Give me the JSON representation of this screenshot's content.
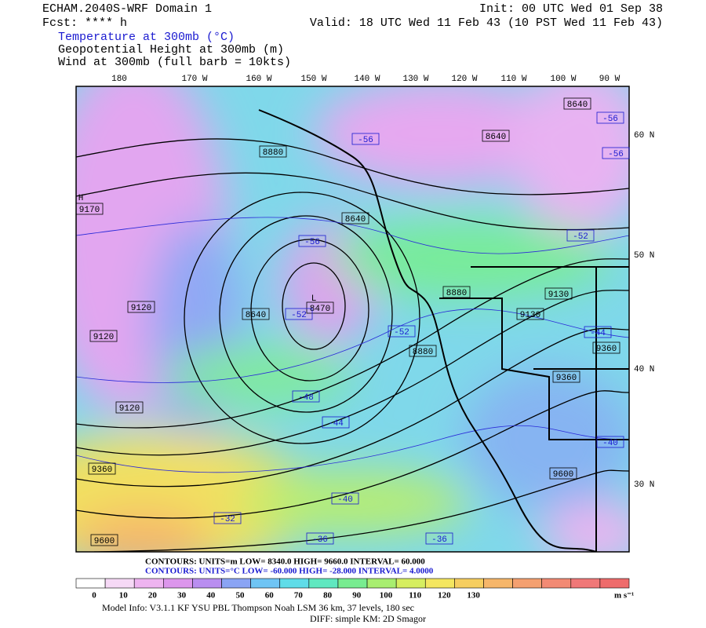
{
  "header": {
    "title": "ECHAM.2040S-WRF Domain 1",
    "fcst": "Fcst: **** h",
    "init": "Init: 00 UTC Wed 01 Sep 38",
    "valid": "Valid: 18 UTC Wed 11 Feb 43 (10 PST Wed 11 Feb 43)",
    "fields": [
      "Temperature at 300mb (°C)",
      "Geopotential Height at 300mb (m)",
      "Wind at 300mb (full barb = 10kts)"
    ]
  },
  "map": {
    "lon_labels": [
      "180",
      "170 W",
      "160 W",
      "150 W",
      "140 W",
      "130 W",
      "120 W",
      "110 W",
      "100 W",
      "90 W"
    ],
    "lat_labels": [
      "60 N",
      "50 N",
      "40 N",
      "30 N"
    ],
    "markers": [
      "H",
      "L"
    ],
    "height_labels": [
      "9170",
      "9120",
      "9120",
      "9120",
      "9360",
      "9600",
      "8640",
      "8470",
      "8640",
      "8880",
      "8880",
      "9130",
      "9130",
      "9360",
      "9600",
      "9360",
      "8640",
      "8640",
      "8880"
    ],
    "temperature_labels": [
      "-56",
      "-56",
      "-52",
      "-52",
      "-48",
      "-44",
      "-40",
      "-36",
      "-36",
      "-52",
      "-56",
      "-56",
      "-40",
      "-44",
      "-32"
    ]
  },
  "footer": {
    "height_contours": "CONTOURS:  UNITS=m  LOW=  8340.0    HIGH=  9660.0    INTERVAL=   60.000",
    "temperature_contours": "CONTOURS:  UNITS=°C  LOW=  -60.000    HIGH=  -28.000    INTERVAL=   4.0000",
    "model_info": "Model Info: V3.1.1    KF       YSU PBL   Thompson     Noah LSM  36 km,    37 levels,  180 sec",
    "diff": "DIFF: simple KM: 2D Smagor"
  },
  "colorbar": {
    "labels": [
      "0",
      "10",
      "20",
      "30",
      "40",
      "50",
      "60",
      "70",
      "80",
      "90",
      "100",
      "110",
      "120",
      "130"
    ],
    "unit": "m s⁻¹",
    "colors": [
      "#ffffff",
      "#f6d9f6",
      "#eeb4f0",
      "#dc96ec",
      "#b98ef0",
      "#8aa4f4",
      "#6fc4f4",
      "#5fdce8",
      "#60e8c0",
      "#78ec90",
      "#a8ee70",
      "#d6ee60",
      "#f4e660",
      "#f6ce60",
      "#f6b66a",
      "#f4a070",
      "#f28a74",
      "#f07878",
      "#ee6c6c"
    ]
  }
}
